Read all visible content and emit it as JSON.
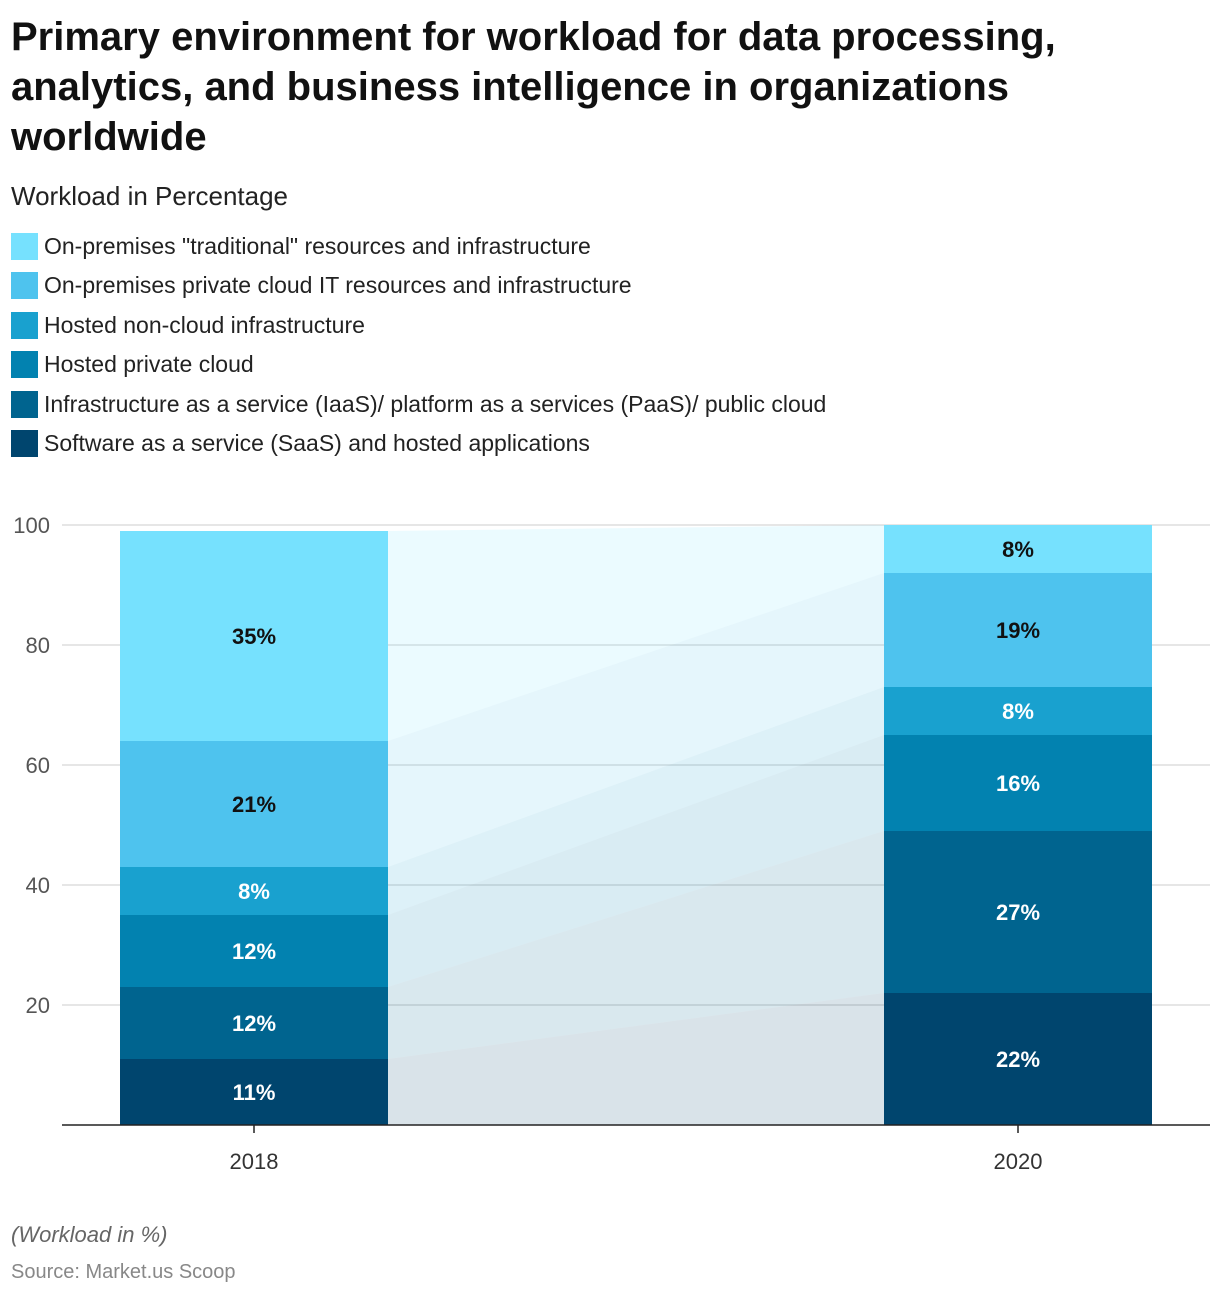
{
  "title": "Primary environment for workload for data processing, analytics, and business intelligence in organizations worldwide",
  "subtitle": "Workload in Percentage",
  "footnote": "(Workload in %)",
  "source": "Source: Market.us Scoop",
  "legend": [
    {
      "label": "On-premises \"traditional\" resources and infrastructure",
      "color": "#76E1FE"
    },
    {
      "label": "On-premises private cloud IT resources and infrastructure",
      "color": "#4EC3EE"
    },
    {
      "label": "Hosted non-cloud infrastructure",
      "color": "#19A1CF"
    },
    {
      "label": "Hosted private cloud",
      "color": "#0282B0"
    },
    {
      "label": "Infrastructure as a service (IaaS)/ platform as a services (PaaS)/ public cloud",
      "color": "#00648F"
    },
    {
      "label": "Software as a service (SaaS) and hosted applications",
      "color": "#00456E"
    }
  ],
  "chart_data": {
    "type": "bar",
    "stacked": true,
    "categories": [
      "2018",
      "2020"
    ],
    "ylim": [
      0,
      100
    ],
    "yticks": [
      20,
      40,
      60,
      80,
      100
    ],
    "series": [
      {
        "name": "Software as a service (SaaS) and hosted applications",
        "values": [
          11,
          22
        ],
        "labels": [
          "11%",
          "22%"
        ],
        "color": "#00456E",
        "label_color": "#ffffff"
      },
      {
        "name": "Infrastructure as a service (IaaS)/ platform as a services (PaaS)/ public cloud",
        "values": [
          12,
          27
        ],
        "labels": [
          "12%",
          "27%"
        ],
        "color": "#00648F",
        "label_color": "#ffffff"
      },
      {
        "name": "Hosted private cloud",
        "values": [
          12,
          16
        ],
        "labels": [
          "12%",
          "16%"
        ],
        "color": "#0282B0",
        "label_color": "#ffffff"
      },
      {
        "name": "Hosted non-cloud infrastructure",
        "values": [
          8,
          8
        ],
        "labels": [
          "8%",
          "8%"
        ],
        "color": "#19A1CF",
        "label_color": "#ffffff"
      },
      {
        "name": "On-premises private cloud IT resources and infrastructure",
        "values": [
          21,
          19
        ],
        "labels": [
          "21%",
          "19%"
        ],
        "color": "#4EC3EE",
        "label_color": "#111111"
      },
      {
        "name": "On-premises \"traditional\" resources and infrastructure",
        "values": [
          35,
          8
        ],
        "labels": [
          "35%",
          "8%"
        ],
        "color": "#76E1FE",
        "label_color": "#111111"
      }
    ]
  }
}
